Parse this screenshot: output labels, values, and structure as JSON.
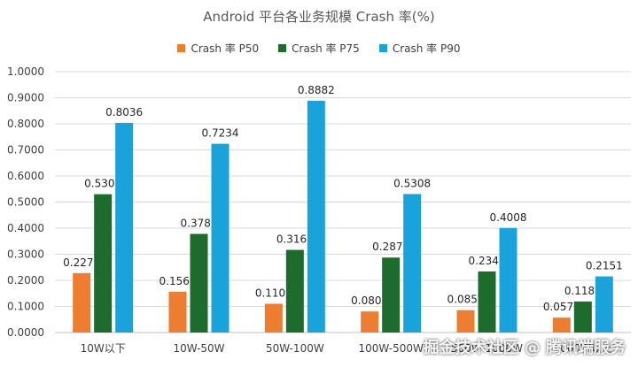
{
  "chart_data": {
    "type": "bar",
    "title": "Android 平台各业务规模 Crash 率(%)",
    "categories": [
      "10W以下",
      "10W-50W",
      "50W-100W",
      "100W-500W",
      "500W-1000W",
      "1000W以上"
    ],
    "series": [
      {
        "name": "Crash 率 P50",
        "color": "#ED7D31",
        "values": [
          0.2276,
          0.1565,
          0.1102,
          0.0807,
          0.0856,
          0.0571
        ]
      },
      {
        "name": "Crash 率 P75",
        "color": "#1E6B2E",
        "values": [
          0.5301,
          0.378,
          0.3167,
          0.2873,
          0.234,
          0.1189
        ]
      },
      {
        "name": "Crash 率 P90",
        "color": "#1AA3DB",
        "values": [
          0.8036,
          0.7234,
          0.8882,
          0.5308,
          0.4008,
          0.2151
        ]
      }
    ],
    "data_labels": [
      [
        "0.2276",
        "0.1565",
        "0.1102",
        "0.0807",
        "0.0856",
        "0.0571"
      ],
      [
        "0.5301",
        "0.3780",
        "0.3167",
        "0.2873",
        "0.2340",
        "0.1189"
      ],
      [
        "0.8036",
        "0.7234",
        "0.8882",
        "0.5308",
        "0.4008",
        "0.2151"
      ]
    ],
    "y_ticks": [
      "0.0000",
      "0.1000",
      "0.2000",
      "0.3000",
      "0.4000",
      "0.5000",
      "0.6000",
      "0.7000",
      "0.8000",
      "0.9000",
      "1.0000"
    ],
    "ylim": [
      0,
      1.0
    ],
    "grid": true,
    "legend_position": "top-center",
    "xlabel": "",
    "ylabel": ""
  },
  "watermark": "掘金技术社区 @ 腾讯端服务"
}
